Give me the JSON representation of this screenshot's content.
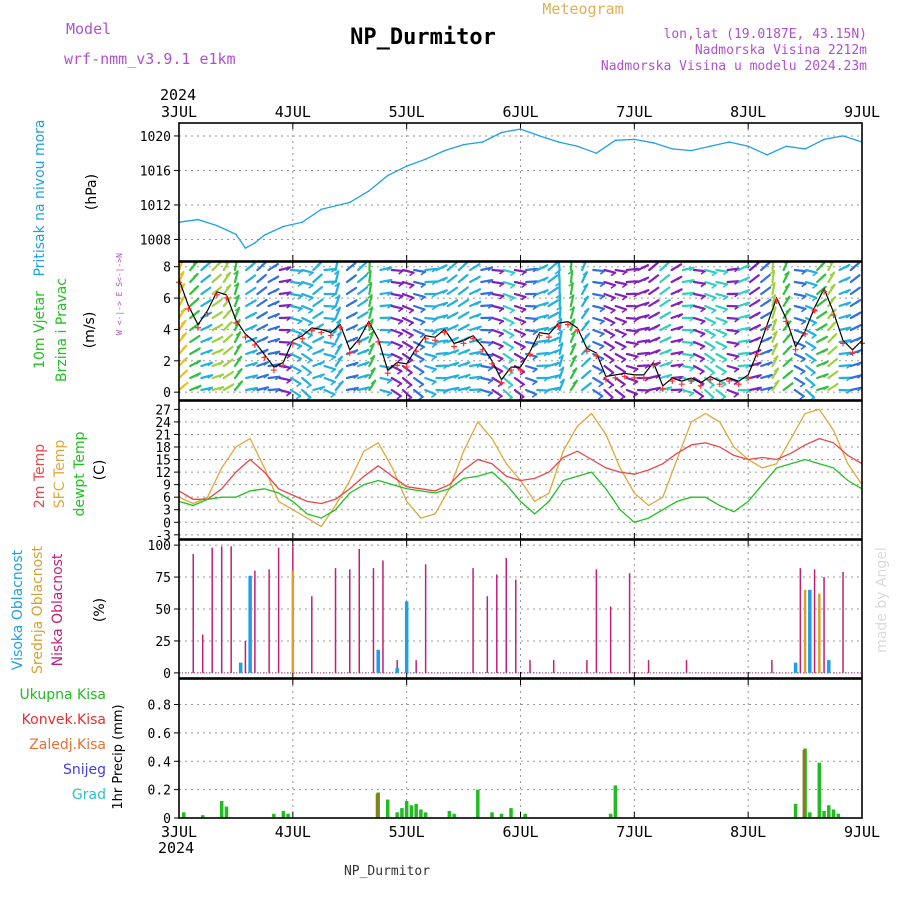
{
  "header": {
    "model_label": "Model",
    "model_name": "wrf-nmm_v3.9.1  e1km",
    "station": "NP_Durmitor",
    "product": "Meteogram",
    "coords": "lon,lat (19.0187E, 43.15N)",
    "elevation": "Nadmorska Visina 2212m",
    "model_elevation": "Nadmorska Visina u modelu 2024.23m",
    "year": "2024",
    "footer_station": "NP_Durmitor",
    "credit": "made by Angel"
  },
  "colors": {
    "pressure": "#1ea0e8",
    "t2m": "#e8474a",
    "tsfc": "#e0a83a",
    "dewpoint": "#22c022",
    "high_cloud": "#1ea0e8",
    "mid_cloud": "#d8a030",
    "low_cloud": "#c0207a",
    "total_precip": "#22bb22",
    "conv_precip": "#e83030",
    "frozen_precip": "#e87030",
    "snow": "#4040e0",
    "graupel": "#30c0c0",
    "wind_line": "#000000",
    "wind_marker": "#ff3030",
    "frame": "#000000",
    "grid": "#888888"
  },
  "axes": {
    "x_ticks": [
      "3JUL",
      "4JUL",
      "5JUL",
      "6JUL",
      "7JUL",
      "8JUL",
      "9JUL"
    ]
  },
  "panels": {
    "pressure": {
      "ylabel_left": "Pritisak na nivou mora",
      "unit": "(hPa)",
      "yticks": [
        "1008",
        "1012",
        "1016",
        "1020"
      ]
    },
    "wind": {
      "ylabel_left1": "10m Vjetar",
      "ylabel_left2": "Brzina i Pravac",
      "unit": "(m/s)",
      "yticks": [
        "0",
        "2",
        "4",
        "6",
        "8"
      ],
      "compass": "W <-|-> E  S<-|->N"
    },
    "temp": {
      "ylabel_1": "2m Temp",
      "ylabel_2": "SFC Temp",
      "ylabel_3": "dewpt Temp",
      "unit": "(C)",
      "yticks": [
        "-3",
        "0",
        "3",
        "6",
        "9",
        "12",
        "15",
        "18",
        "21",
        "24",
        "27"
      ]
    },
    "cloud": {
      "ylabel_1": "Visoka Oblacnost",
      "ylabel_2": "Srednja Oblacnost",
      "ylabel_3": "Niska Oblacnost",
      "unit": "(%)",
      "yticks": [
        "0",
        "25",
        "50",
        "75",
        "100"
      ]
    },
    "precip": {
      "legend": [
        "Ukupna Kisa",
        "Konvek.Kisa",
        "Zaledj.Kisa",
        "Snijeg",
        "Grad"
      ],
      "ylabel": "1hr Precip (mm)",
      "yticks": [
        "0",
        "0.2",
        "0.4",
        "0.6",
        "0.8"
      ]
    }
  },
  "chart_data": [
    {
      "type": "line",
      "title": "Pritisak na nivou mora",
      "ylabel": "(hPa)",
      "x_unit": "hours since 3JUL 00",
      "ylim": [
        1005.5,
        1021.5
      ],
      "series": [
        {
          "name": "Pritisak na nivou mora",
          "x": [
            0,
            4,
            8,
            12,
            14,
            16,
            18,
            22,
            26,
            30,
            36,
            40,
            44,
            48,
            52,
            56,
            60,
            64,
            68,
            72,
            76,
            80,
            84,
            88,
            92,
            96,
            100,
            104,
            108,
            112,
            116,
            120,
            124,
            128,
            132,
            136,
            140,
            144
          ],
          "values": [
            1010,
            1010.3,
            1009.6,
            1008.6,
            1007,
            1007.6,
            1008.5,
            1009.5,
            1010,
            1011.5,
            1012.3,
            1013.6,
            1015.4,
            1016.5,
            1017.3,
            1018.3,
            1019,
            1019.3,
            1020.4,
            1020.8,
            1020,
            1019.3,
            1018.8,
            1018,
            1019.5,
            1019.6,
            1019.2,
            1018.5,
            1018.3,
            1018.8,
            1019.3,
            1018.8,
            1017.8,
            1018.8,
            1018.5,
            1019.6,
            1020,
            1019.3
          ]
        }
      ]
    },
    {
      "type": "line",
      "title": "10m Vjetar Brzina i Pravac",
      "ylabel": "(m/s)",
      "x_unit": "hours since 3JUL 00",
      "ylim": [
        -0.5,
        8.3
      ],
      "series": [
        {
          "name": "10m Vjetar",
          "x": [
            0,
            2,
            4,
            6,
            8,
            10,
            12,
            14,
            16,
            18,
            20,
            22,
            24,
            26,
            28,
            30,
            32,
            34,
            36,
            38,
            40,
            42,
            44,
            46,
            48,
            50,
            52,
            54,
            56,
            58,
            60,
            62,
            64,
            66,
            68,
            70,
            72,
            74,
            76,
            78,
            80,
            82,
            84,
            86,
            88,
            90,
            92,
            94,
            96,
            98,
            100,
            102,
            104,
            106,
            108,
            110,
            112,
            114,
            116,
            118,
            120,
            122,
            124,
            126,
            128,
            130,
            132,
            134,
            136,
            138,
            140,
            142,
            144
          ],
          "values": [
            7.2,
            5.5,
            4.3,
            5.2,
            6.4,
            6.2,
            4.6,
            3.7,
            3.2,
            2.4,
            1.6,
            1.9,
            3.3,
            3.6,
            4.1,
            4.0,
            3.8,
            4.3,
            2.7,
            3.4,
            4.5,
            3.4,
            1.4,
            1.9,
            1.8,
            2.8,
            3.6,
            3.5,
            4.0,
            3.1,
            3.3,
            3.6,
            2.9,
            2.0,
            0.8,
            1.6,
            1.6,
            2.6,
            3.8,
            3.7,
            4.4,
            4.5,
            4.1,
            2.8,
            2.5,
            1.0,
            1.1,
            1.2,
            1.1,
            1.1,
            1.9,
            0.4,
            0.9,
            0.7,
            0.9,
            0.6,
            1.0,
            0.7,
            0.9,
            0.7,
            1.1,
            2.6,
            4.3,
            6.0,
            4.7,
            2.9,
            3.9,
            5.4,
            6.6,
            5.1,
            3.3,
            2.7,
            3.3
          ]
        }
      ]
    },
    {
      "type": "line",
      "title": "2m Temp / SFC Temp / dewpt Temp",
      "ylabel": "(C)",
      "x_unit": "hours since 3JUL 00",
      "ylim": [
        -4,
        29
      ],
      "series": [
        {
          "name": "2m Temp",
          "x": [
            0,
            3,
            6,
            9,
            12,
            15,
            18,
            21,
            24,
            27,
            30,
            33,
            36,
            39,
            42,
            45,
            48,
            51,
            54,
            57,
            60,
            63,
            66,
            69,
            72,
            75,
            78,
            81,
            84,
            87,
            90,
            93,
            96,
            99,
            102,
            105,
            108,
            111,
            114,
            117,
            120,
            123,
            126,
            129,
            132,
            135,
            138,
            141,
            144
          ],
          "values": [
            7.5,
            5.5,
            5.5,
            8,
            12,
            15,
            12,
            8,
            6.5,
            5,
            4.5,
            5.5,
            8,
            11,
            13.5,
            11,
            8.5,
            8,
            7.5,
            9,
            12.5,
            15,
            14,
            11,
            10,
            10.5,
            12,
            15.5,
            17,
            15,
            13,
            12,
            11.5,
            12.5,
            14,
            16.5,
            18.5,
            19,
            18,
            16,
            15,
            15.5,
            15,
            16.5,
            18.5,
            20,
            19,
            16,
            14
          ]
        },
        {
          "name": "SFC Temp",
          "x": [
            0,
            3,
            6,
            9,
            12,
            15,
            18,
            21,
            24,
            27,
            30,
            33,
            36,
            39,
            42,
            45,
            48,
            51,
            54,
            57,
            60,
            63,
            66,
            69,
            72,
            75,
            78,
            81,
            84,
            87,
            90,
            93,
            96,
            99,
            102,
            105,
            108,
            111,
            114,
            117,
            120,
            123,
            126,
            129,
            132,
            135,
            138,
            141,
            144
          ],
          "values": [
            6,
            4.5,
            6,
            13,
            18,
            20,
            13,
            5,
            3,
            1,
            -1,
            4,
            10,
            17,
            19,
            13,
            5,
            1,
            2,
            8,
            17,
            24,
            20,
            14,
            10,
            5,
            7,
            17,
            23,
            26,
            21,
            13,
            7,
            4,
            6,
            15,
            24,
            26,
            24,
            18,
            15,
            13,
            14,
            20,
            26,
            27,
            22,
            14,
            9
          ]
        },
        {
          "name": "dewpt Temp",
          "x": [
            0,
            3,
            6,
            9,
            12,
            15,
            18,
            21,
            24,
            27,
            30,
            33,
            36,
            39,
            42,
            45,
            48,
            51,
            54,
            57,
            60,
            63,
            66,
            69,
            72,
            75,
            78,
            81,
            84,
            87,
            90,
            93,
            96,
            99,
            102,
            105,
            108,
            111,
            114,
            117,
            120,
            123,
            126,
            129,
            132,
            135,
            138,
            141,
            144
          ],
          "values": [
            5,
            4,
            5.5,
            6,
            6,
            7.5,
            8,
            7,
            5,
            2,
            1,
            3,
            7,
            9,
            10,
            9,
            8,
            7.5,
            7,
            8,
            10.5,
            11,
            12,
            9,
            5,
            2,
            5,
            10,
            11,
            12,
            8,
            3,
            0,
            1,
            3,
            5,
            6,
            6,
            4,
            2.5,
            5,
            9,
            13,
            14,
            15,
            14,
            13,
            10,
            8
          ]
        }
      ]
    },
    {
      "type": "bar",
      "title": "Oblacnost",
      "ylabel": "(%)",
      "x_unit": "hours since 3JUL 00",
      "ylim": [
        0,
        100
      ],
      "series": [
        {
          "name": "Niska Oblacnost",
          "x": [
            3,
            5,
            7,
            9,
            11,
            14,
            16,
            19,
            21,
            24,
            28,
            33,
            36,
            38,
            41,
            43,
            46,
            50,
            52,
            62,
            65,
            67,
            69,
            71,
            74,
            79,
            86,
            88,
            91,
            95,
            99,
            107,
            125,
            131,
            134,
            136,
            140
          ],
          "values": [
            93,
            30,
            98,
            99,
            99,
            25,
            80,
            81,
            98,
            99,
            60,
            82,
            81,
            97,
            82,
            88,
            10,
            10,
            85,
            82,
            60,
            77,
            90,
            73,
            10,
            10,
            10,
            81,
            52,
            78,
            10,
            10,
            10,
            82,
            81,
            75,
            79
          ]
        },
        {
          "name": "Srednja Oblacnost",
          "x": [
            24,
            42,
            132,
            135
          ],
          "values": [
            80,
            18,
            65,
            62
          ]
        },
        {
          "name": "Visoka Oblacnost",
          "x": [
            13,
            15,
            42,
            46,
            48,
            130,
            133,
            137
          ],
          "values": [
            8,
            76,
            18,
            4,
            56,
            8,
            65,
            10
          ]
        }
      ]
    },
    {
      "type": "bar",
      "title": "1hr Precip",
      "ylabel": "1hr Precip (mm)",
      "x_unit": "hours since 3JUL 00",
      "ylim": [
        0,
        0.98
      ],
      "series": [
        {
          "name": "Ukupna Kisa",
          "x": [
            1,
            5,
            9,
            10,
            20,
            22,
            23,
            42,
            44,
            46,
            47,
            48,
            49,
            50,
            51,
            52,
            57,
            58,
            63,
            66,
            68,
            70,
            73,
            91,
            92,
            130,
            132,
            133,
            135,
            136,
            137,
            138,
            139
          ],
          "values": [
            0.04,
            0.02,
            0.12,
            0.08,
            0.03,
            0.05,
            0.03,
            0.18,
            0.13,
            0.04,
            0.07,
            0.12,
            0.09,
            0.1,
            0.06,
            0.04,
            0.05,
            0.03,
            0.2,
            0.04,
            0.03,
            0.07,
            0.03,
            0.03,
            0.23,
            0.1,
            0.49,
            0.04,
            0.39,
            0.05,
            0.09,
            0.06,
            0.03
          ]
        },
        {
          "name": "Konvek.Kisa",
          "x": [
            42,
            132
          ],
          "values": [
            0.17,
            0.48
          ]
        },
        {
          "name": "Zaledj.Kisa",
          "x": [],
          "values": []
        },
        {
          "name": "Snijeg",
          "x": [],
          "values": []
        },
        {
          "name": "Grad",
          "x": [],
          "values": []
        }
      ]
    }
  ]
}
